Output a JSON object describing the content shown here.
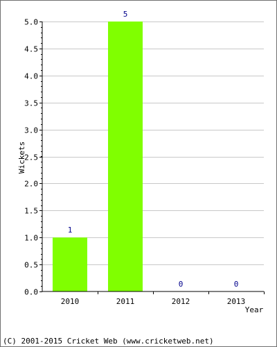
{
  "chart_data": {
    "type": "bar",
    "categories": [
      "2010",
      "2011",
      "2012",
      "2013"
    ],
    "values": [
      1,
      5,
      0,
      0
    ],
    "data_labels": [
      "1",
      "5",
      "0",
      "0"
    ],
    "title": "",
    "xlabel": "Year",
    "ylabel": "Wickets",
    "ylim": [
      0,
      5
    ],
    "yticks": [
      "0.0",
      "0.5",
      "1.0",
      "1.5",
      "2.0",
      "2.5",
      "3.0",
      "3.5",
      "4.0",
      "4.5",
      "5.0"
    ],
    "grid": true,
    "colors": {
      "bar": "#80ff00",
      "grid": "#c8c8c8",
      "data_label": "#00008b"
    }
  },
  "footer": {
    "copyright": "(C) 2001-2015 Cricket Web (www.cricketweb.net)"
  }
}
